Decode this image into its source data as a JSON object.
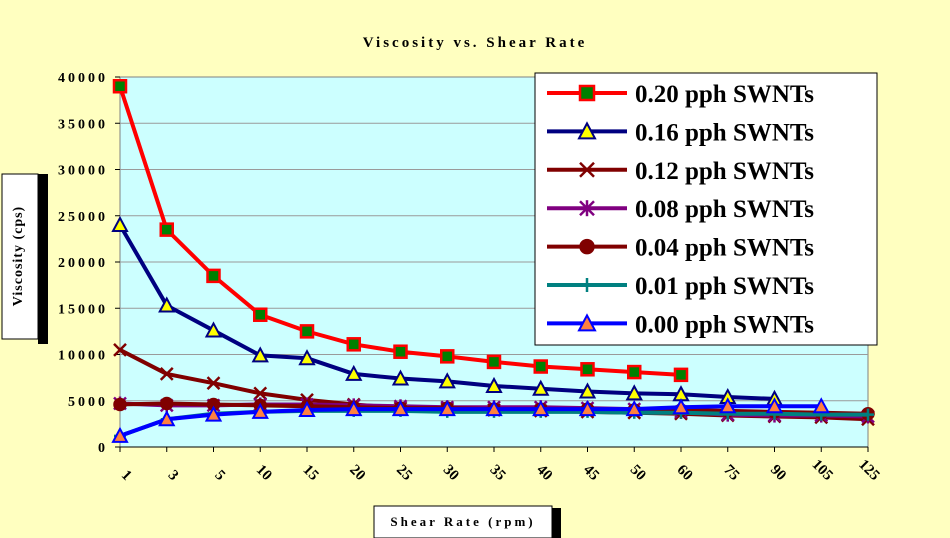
{
  "chart_data": {
    "type": "line",
    "title": "Viscosity vs. Shear Rate",
    "xlabel": "Shear Rate (rpm)",
    "ylabel": "Viscosity (cps)",
    "categories": [
      "1",
      "3",
      "5",
      "10",
      "15",
      "20",
      "25",
      "30",
      "35",
      "40",
      "45",
      "50",
      "60",
      "75",
      "90",
      "105",
      "125"
    ],
    "ylim": [
      0,
      40000
    ],
    "yticks": [
      "0",
      "5000",
      "10000",
      "15000",
      "20000",
      "25000",
      "30000",
      "35000",
      "40000"
    ],
    "grid": true,
    "legend_position": "top-right",
    "plot_background": "#ccffff",
    "series": [
      {
        "name": "0.20 pph SWNTs",
        "color": "#ff0000",
        "marker": "square",
        "marker_fill": "#008000",
        "values": [
          39000,
          23500,
          18500,
          14300,
          12500,
          11100,
          10300,
          9800,
          9200,
          8700,
          8400,
          8100,
          7800,
          null,
          null,
          null,
          null
        ]
      },
      {
        "name": "0.16 pph SWNTs",
        "color": "#000080",
        "marker": "triangle",
        "marker_fill": "#ffff00",
        "values": [
          24000,
          15300,
          12600,
          9900,
          9600,
          7900,
          7400,
          7100,
          6600,
          6300,
          6000,
          5800,
          5700,
          5400,
          5200,
          null,
          null
        ]
      },
      {
        "name": "0.12 pph SWNTs",
        "color": "#800000",
        "marker": "x",
        "marker_fill": "#800000",
        "values": [
          10500,
          7900,
          6900,
          5800,
          5100,
          4600,
          4200,
          4100,
          4000,
          3900,
          3800,
          3700,
          3600,
          3400,
          3300,
          3200,
          3000
        ]
      },
      {
        "name": "0.08 pph SWNTs",
        "color": "#800080",
        "marker": "star",
        "marker_fill": "#800080",
        "values": [
          4700,
          4500,
          4500,
          4600,
          4600,
          4500,
          4400,
          4300,
          4300,
          4300,
          4200,
          4100,
          3800,
          3500,
          3400,
          3400,
          3300
        ]
      },
      {
        "name": "0.04 pph SWNTs",
        "color": "#800000",
        "marker": "circle",
        "marker_fill": "#800000",
        "values": [
          4600,
          4700,
          4600,
          4500,
          4400,
          4300,
          4200,
          4200,
          4100,
          4100,
          4100,
          4000,
          4000,
          3900,
          3800,
          3700,
          3600
        ]
      },
      {
        "name": "0.01 pph SWNTs",
        "color": "#008080",
        "marker": "plus",
        "marker_fill": "#008080",
        "values": [
          1200,
          3000,
          3600,
          3800,
          3900,
          3900,
          3900,
          3800,
          3800,
          3800,
          3800,
          3700,
          3700,
          3600,
          3600,
          3500,
          3500
        ]
      },
      {
        "name": "0.00 pph SWNTs",
        "color": "#0000ff",
        "marker": "triangle",
        "marker_fill": "#ff8040",
        "values": [
          1200,
          3000,
          3500,
          3800,
          4000,
          4100,
          4100,
          4100,
          4100,
          4100,
          4100,
          4100,
          4300,
          4400,
          4400,
          4400,
          null
        ]
      }
    ]
  }
}
